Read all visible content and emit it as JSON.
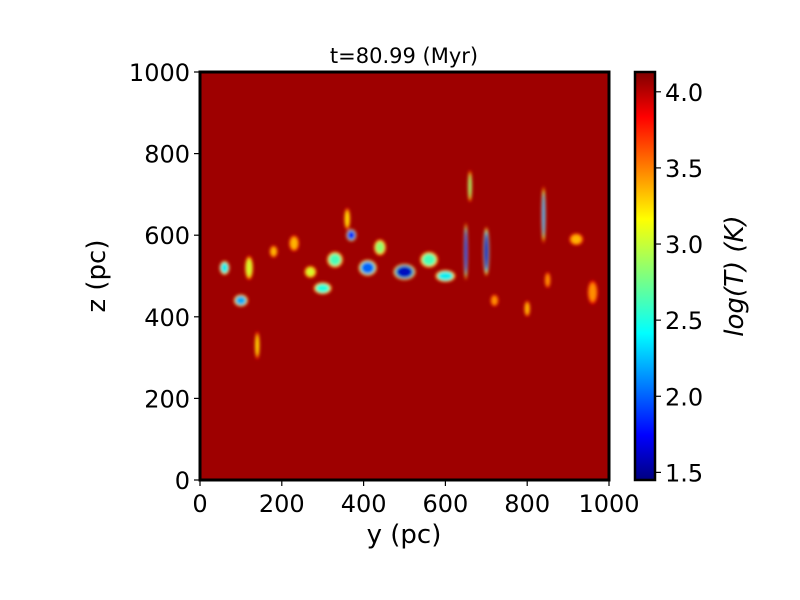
{
  "chart_data": {
    "type": "heatmap",
    "title": "t=80.99 (Myr)",
    "xlabel": "y (pc)",
    "ylabel": "z (pc)",
    "xlim": [
      0,
      1000
    ],
    "ylim": [
      0,
      1000
    ],
    "x_ticks": [
      0,
      200,
      400,
      600,
      800,
      1000
    ],
    "y_ticks": [
      0,
      200,
      400,
      600,
      800,
      1000
    ],
    "colorbar": {
      "label": "log(T) (K)",
      "colormap": "jet",
      "range": [
        1.45,
        4.13
      ],
      "ticks": [
        "1.5",
        "2.0",
        "2.5",
        "3.0",
        "3.5",
        "4.0"
      ],
      "tick_values": [
        1.5,
        2.0,
        2.5,
        3.0,
        3.5,
        4.0
      ]
    },
    "background_value": 4.05,
    "cold_structures": [
      {
        "y": 60,
        "z": 520,
        "w": 25,
        "h": 35,
        "min_logT": 2.4
      },
      {
        "y": 100,
        "z": 440,
        "w": 35,
        "h": 30,
        "min_logT": 2.2
      },
      {
        "y": 120,
        "z": 520,
        "w": 20,
        "h": 60,
        "min_logT": 3.0
      },
      {
        "y": 140,
        "z": 330,
        "w": 12,
        "h": 70,
        "min_logT": 3.2
      },
      {
        "y": 180,
        "z": 560,
        "w": 20,
        "h": 30,
        "min_logT": 3.3
      },
      {
        "y": 230,
        "z": 580,
        "w": 25,
        "h": 40,
        "min_logT": 3.3
      },
      {
        "y": 270,
        "z": 510,
        "w": 30,
        "h": 30,
        "min_logT": 3.0
      },
      {
        "y": 300,
        "z": 470,
        "w": 45,
        "h": 30,
        "min_logT": 2.5
      },
      {
        "y": 330,
        "z": 540,
        "w": 40,
        "h": 40,
        "min_logT": 2.6
      },
      {
        "y": 360,
        "z": 640,
        "w": 15,
        "h": 55,
        "min_logT": 3.2
      },
      {
        "y": 370,
        "z": 600,
        "w": 25,
        "h": 30,
        "min_logT": 1.8
      },
      {
        "y": 410,
        "z": 520,
        "w": 45,
        "h": 40,
        "min_logT": 2.0
      },
      {
        "y": 440,
        "z": 570,
        "w": 30,
        "h": 40,
        "min_logT": 2.8
      },
      {
        "y": 500,
        "z": 510,
        "w": 55,
        "h": 40,
        "min_logT": 1.6
      },
      {
        "y": 560,
        "z": 540,
        "w": 45,
        "h": 40,
        "min_logT": 2.6
      },
      {
        "y": 600,
        "z": 500,
        "w": 50,
        "h": 30,
        "min_logT": 2.4
      },
      {
        "y": 650,
        "z": 560,
        "w": 10,
        "h": 140,
        "min_logT": 1.7
      },
      {
        "y": 660,
        "z": 720,
        "w": 10,
        "h": 80,
        "min_logT": 2.8
      },
      {
        "y": 700,
        "z": 560,
        "w": 15,
        "h": 120,
        "min_logT": 1.6
      },
      {
        "y": 720,
        "z": 440,
        "w": 20,
        "h": 30,
        "min_logT": 3.4
      },
      {
        "y": 800,
        "z": 420,
        "w": 15,
        "h": 40,
        "min_logT": 3.3
      },
      {
        "y": 840,
        "z": 650,
        "w": 10,
        "h": 140,
        "min_logT": 2.2
      },
      {
        "y": 850,
        "z": 490,
        "w": 15,
        "h": 40,
        "min_logT": 3.4
      },
      {
        "y": 920,
        "z": 590,
        "w": 35,
        "h": 30,
        "min_logT": 3.3
      },
      {
        "y": 960,
        "z": 460,
        "w": 25,
        "h": 60,
        "min_logT": 3.4
      }
    ]
  }
}
